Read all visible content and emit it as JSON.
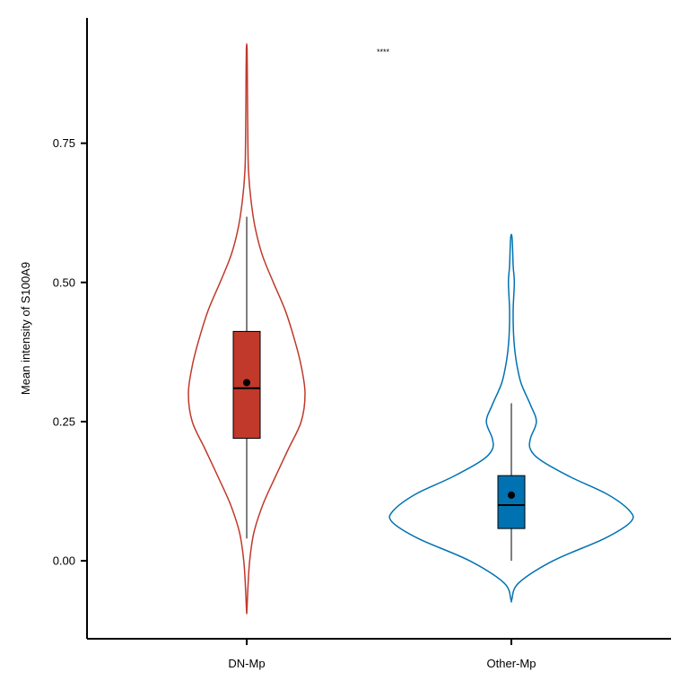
{
  "chart_data": {
    "type": "violin",
    "title": "",
    "xlabel": "",
    "ylabel": "Mean intensity of S100A9",
    "ylim": [
      -0.14,
      0.975
    ],
    "yticks": [
      0.0,
      0.25,
      0.5,
      0.75
    ],
    "ytick_labels": [
      "0.00",
      "0.25",
      "0.50",
      "0.75"
    ],
    "categories": [
      "DN-Mp",
      "Other-Mp"
    ],
    "significance": "****",
    "series": [
      {
        "category": "DN-Mp",
        "color": "#c0392b",
        "box": {
          "whisker_low": 0.04,
          "q1": 0.22,
          "median": 0.31,
          "q3": 0.412,
          "whisker_high": 0.618
        },
        "mean": 0.32,
        "density": [
          [
            -0.09,
            0.003
          ],
          [
            -0.05,
            0.02
          ],
          [
            0.0,
            0.05
          ],
          [
            0.05,
            0.12
          ],
          [
            0.1,
            0.27
          ],
          [
            0.15,
            0.48
          ],
          [
            0.2,
            0.7
          ],
          [
            0.25,
            0.92
          ],
          [
            0.3,
            0.985
          ],
          [
            0.35,
            0.92
          ],
          [
            0.4,
            0.8
          ],
          [
            0.45,
            0.65
          ],
          [
            0.5,
            0.45
          ],
          [
            0.55,
            0.26
          ],
          [
            0.6,
            0.14
          ],
          [
            0.65,
            0.07
          ],
          [
            0.7,
            0.03
          ],
          [
            0.75,
            0.02
          ],
          [
            0.8,
            0.015
          ],
          [
            0.85,
            0.012
          ],
          [
            0.92,
            0.006
          ]
        ]
      },
      {
        "category": "Other-Mp",
        "color": "#0072b2",
        "box": {
          "whisker_low": 0.0,
          "q1": 0.058,
          "median": 0.1,
          "q3": 0.153,
          "whisker_high": 0.283
        },
        "mean": 0.118,
        "density": [
          [
            -0.07,
            0.003
          ],
          [
            -0.04,
            0.06
          ],
          [
            0.0,
            0.35
          ],
          [
            0.04,
            0.78
          ],
          [
            0.07,
            1.0
          ],
          [
            0.09,
            0.99
          ],
          [
            0.12,
            0.8
          ],
          [
            0.15,
            0.5
          ],
          [
            0.18,
            0.25
          ],
          [
            0.2,
            0.16
          ],
          [
            0.22,
            0.16
          ],
          [
            0.25,
            0.21
          ],
          [
            0.28,
            0.16
          ],
          [
            0.32,
            0.08
          ],
          [
            0.36,
            0.04
          ],
          [
            0.4,
            0.02
          ],
          [
            0.45,
            0.015
          ],
          [
            0.5,
            0.025
          ],
          [
            0.53,
            0.015
          ],
          [
            0.58,
            0.006
          ]
        ]
      }
    ]
  }
}
